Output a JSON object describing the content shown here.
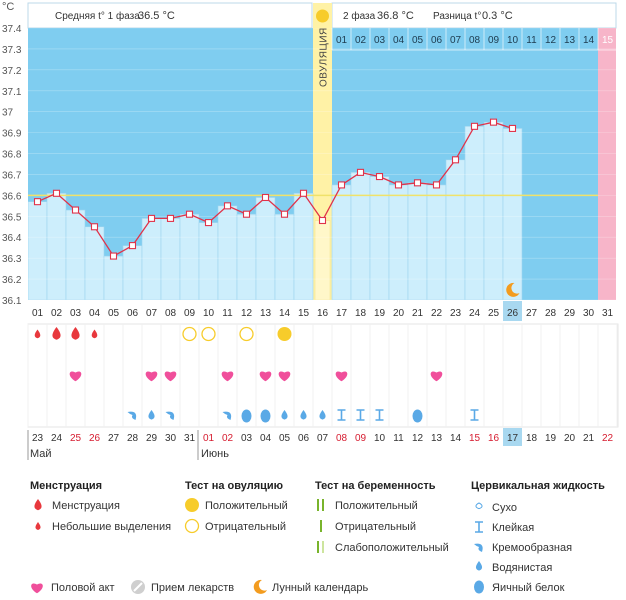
{
  "header": {
    "unit": "°C",
    "phase1_label": "Средняя t° 1 фаза",
    "phase1_value": "36.5 °C",
    "phase2_label": "2 фаза",
    "phase2_value": "36.8 °C",
    "diff_label": "Разница t°",
    "diff_value": "0.3 °C",
    "ovulation_label": "ОВУЛЯЦИЯ"
  },
  "colors": {
    "phase1_bg": "#ffffff",
    "phase2_bg": "#7fcdf0",
    "bar_fill": "#cdeefc",
    "bar_stroke": "#9dd4ee",
    "line": "#e0334a",
    "ovulation_band": "#fff2a6",
    "next_period": "#f7b5c9",
    "coverline": "#f0e26a",
    "today_highlight": "#a8d8f0",
    "menstruation": "#e8383d",
    "intercourse": "#f04f9b",
    "ov_test": "#f7cc2b",
    "fluid": "#5aa9e6",
    "sunday_red": "#d61b2f"
  },
  "chart_data": {
    "type": "bar+line",
    "y_ticks": [
      "36.1",
      "36.2",
      "36.3",
      "36.4",
      "36.5",
      "36.6",
      "36.7",
      "36.8",
      "36.9",
      "37",
      "37.1",
      "37.2",
      "37.3",
      "37.4"
    ],
    "ylim": [
      36.1,
      37.4
    ],
    "coverline": 36.6,
    "x": [
      "01",
      "02",
      "03",
      "04",
      "05",
      "06",
      "07",
      "08",
      "09",
      "10",
      "11",
      "12",
      "13",
      "14",
      "15",
      "16",
      "17",
      "18",
      "19",
      "20",
      "21",
      "22",
      "23",
      "24",
      "25",
      "26",
      "27",
      "28",
      "29",
      "30",
      "31"
    ],
    "temperatures": [
      36.57,
      36.61,
      36.53,
      36.45,
      36.31,
      36.36,
      36.49,
      36.49,
      36.51,
      36.47,
      36.55,
      36.51,
      36.59,
      36.51,
      36.61,
      36.48,
      36.65,
      36.71,
      36.69,
      36.65,
      36.66,
      36.65,
      36.77,
      36.93,
      36.95,
      36.92,
      null,
      null,
      null,
      null,
      null
    ],
    "cycle_days_top": [
      "01",
      "02",
      "03",
      "04",
      "05",
      "06",
      "07",
      "08",
      "09",
      "10",
      "11",
      "12",
      "13",
      "14",
      "15"
    ],
    "ovulation_day": "16",
    "today": "26",
    "next_period_day": "31",
    "dates": [
      "23",
      "24",
      "25",
      "26",
      "27",
      "28",
      "29",
      "30",
      "31",
      "01",
      "02",
      "03",
      "04",
      "05",
      "06",
      "07",
      "08",
      "09",
      "10",
      "11",
      "12",
      "13",
      "14",
      "15",
      "16",
      "17",
      "18",
      "19",
      "20",
      "21",
      "22"
    ],
    "date_red": [
      false,
      false,
      true,
      true,
      false,
      false,
      false,
      false,
      false,
      true,
      true,
      false,
      false,
      false,
      false,
      false,
      true,
      true,
      false,
      false,
      false,
      false,
      false,
      true,
      true,
      false,
      false,
      false,
      false,
      false,
      true
    ],
    "months": [
      {
        "day": "23",
        "label": "Май"
      },
      {
        "day": "01",
        "label": "Июнь"
      }
    ],
    "menstruation": {
      "01": "small",
      "02": "full",
      "03": "full",
      "04": "small"
    },
    "ovulation_tests": {
      "09": "negative",
      "10": "negative",
      "12": "negative",
      "14": "positive"
    },
    "intercourse": [
      "03",
      "07",
      "08",
      "11",
      "13",
      "14",
      "17",
      "22"
    ],
    "cervical_fluid": {
      "06": "creamy",
      "07": "watery",
      "08": "creamy",
      "11": "creamy",
      "12": "egg_white",
      "13": "egg_white",
      "14": "watery",
      "15": "watery",
      "16": "watery",
      "17": "sticky",
      "18": "sticky",
      "19": "sticky",
      "21": "egg_white",
      "24": "sticky"
    }
  },
  "legend": {
    "col1_title": "Менструация",
    "col1_items": [
      "Менструация",
      "Небольшие выделения"
    ],
    "col2_title": "Тест на овуляцию",
    "col2_items": [
      "Положительный",
      "Отрицательный"
    ],
    "col3_title": "Тест на беременность",
    "col3_items": [
      "Положительный",
      "Отрицательный",
      "Слабоположительный"
    ],
    "col4_title": "Цервикальная жидкость",
    "col4_items": [
      "Сухо",
      "Клейкая",
      "Кремообразная",
      "Водянистая",
      "Яичный белок"
    ],
    "bottom_items": [
      "Половой акт",
      "Прием лекарств",
      "Лунный календарь"
    ]
  }
}
